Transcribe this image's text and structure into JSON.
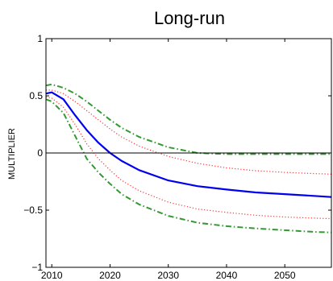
{
  "chart_data": {
    "type": "line",
    "title": "Long-run",
    "xlabel": "",
    "ylabel": "MULTIPLIER",
    "xlim": [
      2009,
      2058
    ],
    "ylim": [
      -1,
      1
    ],
    "xticks": [
      2010,
      2020,
      2030,
      2040,
      2050
    ],
    "yticks": [
      -1,
      -0.5,
      0,
      0.5,
      1
    ],
    "ytick_labels": [
      "−1",
      "−0.5",
      "0",
      "0.5",
      "1"
    ],
    "zero_line": true,
    "grid": false,
    "series": [
      {
        "role": "median",
        "color": "#0000ee",
        "style": "solid",
        "x": [
          2009,
          2010,
          2012,
          2014,
          2016,
          2018,
          2020,
          2022,
          2025,
          2030,
          2035,
          2040,
          2045,
          2050,
          2055,
          2058
        ],
        "y": [
          0.52,
          0.53,
          0.47,
          0.33,
          0.2,
          0.09,
          0.0,
          -0.07,
          -0.15,
          -0.24,
          -0.29,
          -0.32,
          -0.345,
          -0.36,
          -0.375,
          -0.385
        ]
      },
      {
        "role": "inner-upper",
        "color": "#ff3333",
        "style": "dotted",
        "x": [
          2009,
          2010,
          2012,
          2014,
          2016,
          2018,
          2020,
          2022,
          2025,
          2030,
          2035,
          2040,
          2045,
          2050,
          2055,
          2058
        ],
        "y": [
          0.55,
          0.55,
          0.52,
          0.45,
          0.37,
          0.29,
          0.21,
          0.14,
          0.06,
          -0.03,
          -0.09,
          -0.13,
          -0.155,
          -0.17,
          -0.18,
          -0.185
        ]
      },
      {
        "role": "inner-lower",
        "color": "#ff3333",
        "style": "dotted",
        "x": [
          2009,
          2010,
          2012,
          2014,
          2016,
          2018,
          2020,
          2022,
          2025,
          2030,
          2035,
          2040,
          2045,
          2050,
          2055,
          2058
        ],
        "y": [
          0.49,
          0.48,
          0.4,
          0.25,
          0.08,
          -0.05,
          -0.15,
          -0.24,
          -0.33,
          -0.43,
          -0.49,
          -0.52,
          -0.545,
          -0.56,
          -0.57,
          -0.575
        ]
      },
      {
        "role": "outer-upper",
        "color": "#339933",
        "style": "dashdot",
        "x": [
          2009,
          2010,
          2012,
          2014,
          2016,
          2018,
          2020,
          2022,
          2025,
          2030,
          2035,
          2040,
          2045,
          2050,
          2055,
          2058
        ],
        "y": [
          0.59,
          0.6,
          0.57,
          0.52,
          0.45,
          0.37,
          0.29,
          0.22,
          0.14,
          0.05,
          0.0,
          -0.01,
          -0.01,
          -0.01,
          -0.01,
          -0.01
        ]
      },
      {
        "role": "outer-lower",
        "color": "#339933",
        "style": "dashdot",
        "x": [
          2009,
          2010,
          2012,
          2014,
          2016,
          2018,
          2020,
          2022,
          2025,
          2030,
          2035,
          2040,
          2045,
          2050,
          2055,
          2058
        ],
        "y": [
          0.47,
          0.45,
          0.35,
          0.15,
          -0.05,
          -0.17,
          -0.27,
          -0.36,
          -0.45,
          -0.55,
          -0.61,
          -0.64,
          -0.66,
          -0.675,
          -0.69,
          -0.695
        ]
      }
    ]
  }
}
